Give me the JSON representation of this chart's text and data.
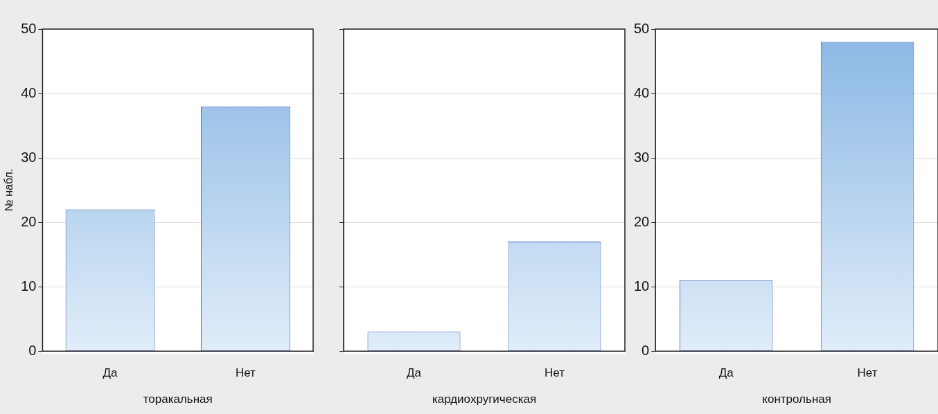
{
  "chart_data": [
    {
      "type": "bar",
      "xlabel": "торакальная",
      "ylabel": "№ набл.",
      "categories": [
        "Да",
        "Нет"
      ],
      "values": [
        22,
        38
      ],
      "color": "#8ab8e4",
      "ylim": [
        0,
        50
      ],
      "yticks": [
        0,
        10,
        20,
        30,
        40,
        50
      ],
      "grid": "y"
    },
    {
      "type": "bar",
      "xlabel": "кардиохругическая",
      "categories": [
        "Да",
        "Нет"
      ],
      "values": [
        3,
        17
      ],
      "color": "#8ab8e4",
      "ylim": [
        0,
        50
      ],
      "yticks": [
        0,
        10,
        20,
        30,
        40,
        50
      ],
      "grid": "y",
      "tick_labels": "x"
    },
    {
      "type": "bar",
      "xlabel": "контрольная",
      "categories": [
        "Да",
        "Нет"
      ],
      "values": [
        11,
        48
      ],
      "color": "#8ab8e4",
      "ylim": [
        0,
        50
      ],
      "yticks": [
        0,
        10,
        20,
        30,
        40,
        50
      ],
      "grid": "y"
    }
  ]
}
